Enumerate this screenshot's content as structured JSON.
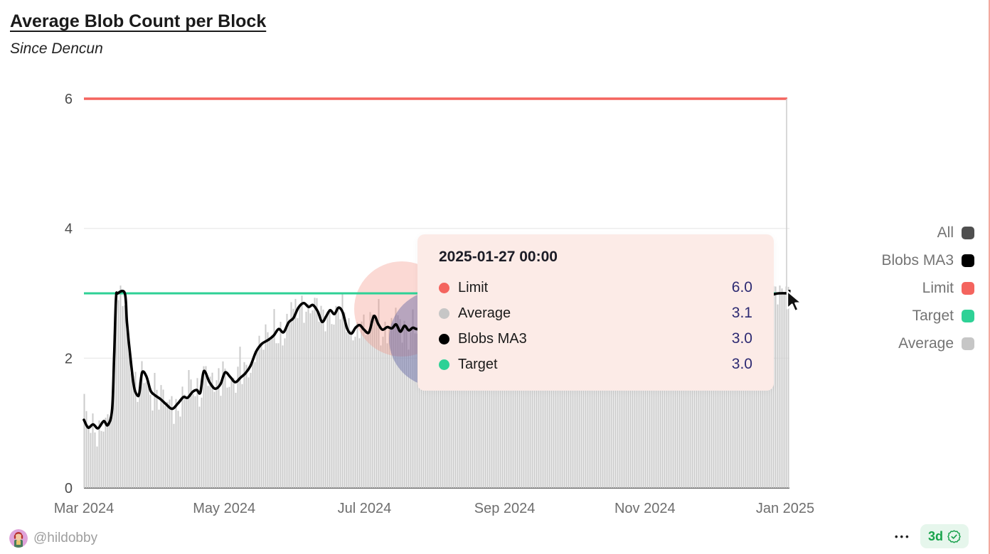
{
  "header": {
    "title": "Average Blob Count per Block",
    "subtitle": "Since Dencun"
  },
  "legend": {
    "items": [
      {
        "label": "All",
        "color": "#4f4f4f"
      },
      {
        "label": "Blobs MA3",
        "color": "#000000"
      },
      {
        "label": "Limit",
        "color": "#f4645e"
      },
      {
        "label": "Target",
        "color": "#2ed196"
      },
      {
        "label": "Average",
        "color": "#c6c6c6"
      }
    ]
  },
  "tooltip": {
    "title": "2025-01-27 00:00",
    "rows": [
      {
        "label": "Limit",
        "value": "6.0",
        "color": "#f4645e"
      },
      {
        "label": "Average",
        "value": "3.1",
        "color": "#c6c6c6"
      },
      {
        "label": "Blobs MA3",
        "value": "3.0",
        "color": "#000000"
      },
      {
        "label": "Target",
        "value": "3.0",
        "color": "#2ed196"
      }
    ]
  },
  "footer": {
    "handle": "@hildobby",
    "menu_label": "•••",
    "age_badge": "3d"
  },
  "chart_data": {
    "type": "line+bar",
    "title": "Average Blob Count per Block",
    "subtitle": "Since Dencun",
    "x_ticks": [
      "Mar 2024",
      "May 2024",
      "Jul 2024",
      "Sep 2024",
      "Nov 2024",
      "Jan 2025"
    ],
    "y_ticks": [
      0,
      2,
      4,
      6
    ],
    "ylim": [
      0,
      6
    ],
    "grid": "horizontal",
    "legend_position": "right",
    "series": [
      {
        "name": "Limit",
        "type": "hline",
        "value": 6.0,
        "color": "#f4645e"
      },
      {
        "name": "Target",
        "type": "hline",
        "value": 3.0,
        "color": "#2ed196"
      },
      {
        "name": "Blobs MA3",
        "type": "line",
        "color": "#000000",
        "points": [
          [
            0,
            1.05
          ],
          [
            0.006,
            0.93
          ],
          [
            0.013,
            0.98
          ],
          [
            0.02,
            0.92
          ],
          [
            0.028,
            1.03
          ],
          [
            0.034,
            0.97
          ],
          [
            0.04,
            1.22
          ],
          [
            0.043,
            2.1
          ],
          [
            0.0455,
            2.92
          ],
          [
            0.048,
            3.0
          ],
          [
            0.058,
            3.0
          ],
          [
            0.061,
            2.55
          ],
          [
            0.066,
            2.0
          ],
          [
            0.071,
            1.56
          ],
          [
            0.0755,
            1.43
          ],
          [
            0.0785,
            1.46
          ],
          [
            0.0825,
            1.78
          ],
          [
            0.0885,
            1.72
          ],
          [
            0.0945,
            1.5
          ],
          [
            0.1005,
            1.43
          ],
          [
            0.1085,
            1.37
          ],
          [
            0.1165,
            1.29
          ],
          [
            0.125,
            1.22
          ],
          [
            0.133,
            1.3
          ],
          [
            0.141,
            1.4
          ],
          [
            0.147,
            1.39
          ],
          [
            0.154,
            1.48
          ],
          [
            0.16,
            1.51
          ],
          [
            0.165,
            1.47
          ],
          [
            0.17,
            1.8
          ],
          [
            0.178,
            1.63
          ],
          [
            0.186,
            1.53
          ],
          [
            0.1935,
            1.6
          ],
          [
            0.2,
            1.78
          ],
          [
            0.2075,
            1.71
          ],
          [
            0.2145,
            1.63
          ],
          [
            0.222,
            1.7
          ],
          [
            0.229,
            1.77
          ],
          [
            0.236,
            1.88
          ],
          [
            0.244,
            2.1
          ],
          [
            0.252,
            2.22
          ],
          [
            0.261,
            2.28
          ],
          [
            0.269,
            2.35
          ],
          [
            0.276,
            2.45
          ],
          [
            0.283,
            2.4
          ],
          [
            0.29,
            2.55
          ],
          [
            0.297,
            2.62
          ],
          [
            0.304,
            2.78
          ],
          [
            0.3115,
            2.85
          ],
          [
            0.3185,
            2.79
          ],
          [
            0.3245,
            2.82
          ],
          [
            0.3315,
            2.72
          ],
          [
            0.3375,
            2.56
          ],
          [
            0.3435,
            2.65
          ],
          [
            0.349,
            2.74
          ],
          [
            0.355,
            2.68
          ],
          [
            0.361,
            2.78
          ],
          [
            0.367,
            2.7
          ],
          [
            0.373,
            2.46
          ],
          [
            0.379,
            2.38
          ],
          [
            0.385,
            2.47
          ],
          [
            0.391,
            2.51
          ],
          [
            0.397,
            2.44
          ],
          [
            0.404,
            2.4
          ],
          [
            0.411,
            2.65
          ],
          [
            0.417,
            2.53
          ],
          [
            0.423,
            2.44
          ],
          [
            0.43,
            2.48
          ],
          [
            0.4365,
            2.46
          ],
          [
            0.4425,
            2.52
          ],
          [
            0.4485,
            2.41
          ],
          [
            0.4545,
            2.5
          ],
          [
            0.4605,
            2.43
          ],
          [
            0.4665,
            2.47
          ],
          [
            0.4755,
            2.45
          ],
          [
            0.506,
            2.55
          ],
          [
            0.536,
            2.42
          ],
          [
            0.5665,
            2.6
          ],
          [
            0.5965,
            2.5
          ],
          [
            0.627,
            2.65
          ],
          [
            0.657,
            2.55
          ],
          [
            0.6875,
            2.7
          ],
          [
            0.7175,
            2.6
          ],
          [
            0.748,
            2.75
          ],
          [
            0.778,
            2.65
          ],
          [
            0.8085,
            2.8
          ],
          [
            0.8385,
            2.72
          ],
          [
            0.869,
            2.85
          ],
          [
            0.899,
            2.78
          ],
          [
            0.9295,
            2.9
          ],
          [
            0.9545,
            2.95
          ],
          [
            0.9745,
            2.98
          ],
          [
            0.985,
            3.0
          ],
          [
            1,
            3.0
          ]
        ]
      },
      {
        "name": "Average",
        "type": "bar",
        "color": "#cbcbcb",
        "note": "daily bars scattered around Blobs MA3",
        "last_value": 3.1,
        "noise": {
          "amps": [
            0.17,
            0.11,
            0.07
          ],
          "freqs": [
            1.93,
            0.517,
            3.7
          ],
          "phases": [
            0,
            1.3,
            0.5
          ],
          "spike": 0.27
        }
      }
    ],
    "hover": {
      "x_label": "2025-01-27 00:00",
      "values": {
        "Limit": 6.0,
        "Average": 3.1,
        "Blobs MA3": 3.0,
        "Target": 3.0
      }
    },
    "decor": {
      "watermark_pink": "rgba(242,140,125,0.33)",
      "watermark_blue": "rgba(88,92,160,0.42)",
      "crosshair_color": "#cfcfcf",
      "grid_color": "#ececec",
      "axis_color": "#141414"
    }
  }
}
